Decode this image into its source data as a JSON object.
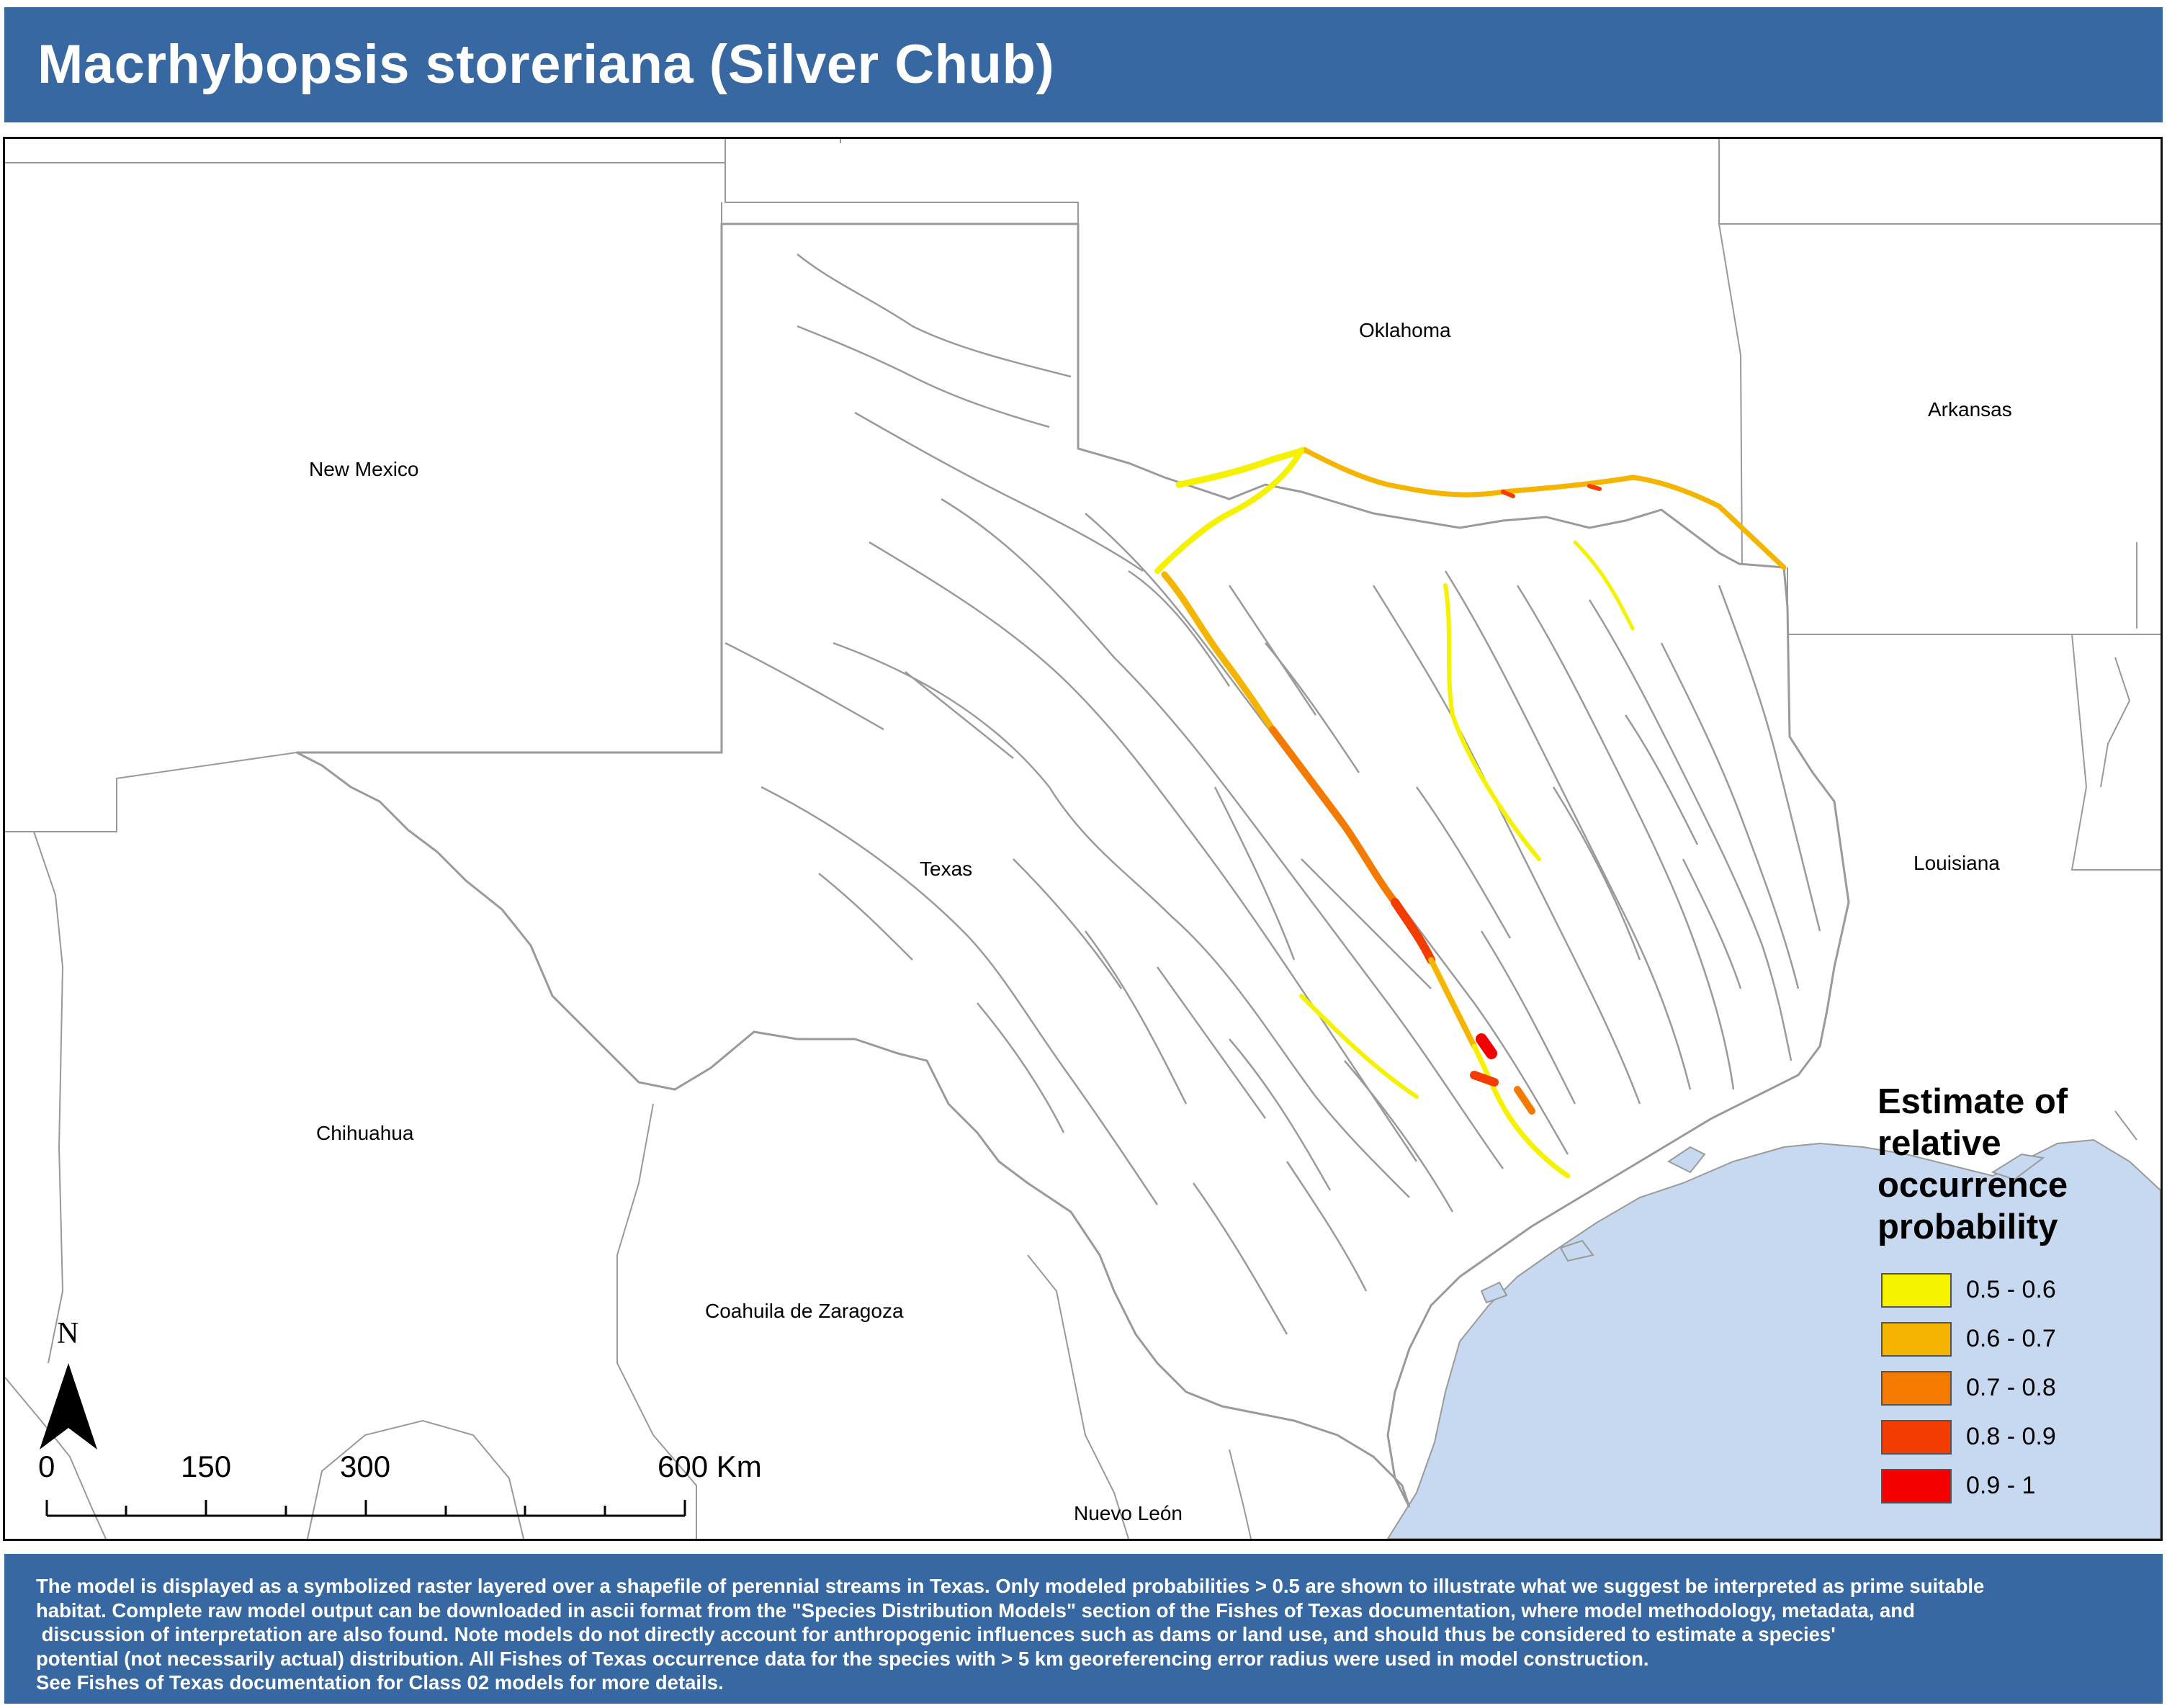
{
  "title": "Macrhybopsis storeriana (Silver Chub)",
  "map": {
    "place_labels": [
      {
        "id": "oklahoma",
        "text": "Oklahoma"
      },
      {
        "id": "arkansas",
        "text": "Arkansas"
      },
      {
        "id": "new-mexico",
        "text": "New Mexico"
      },
      {
        "id": "texas",
        "text": "Texas"
      },
      {
        "id": "louisiana",
        "text": "Louisiana"
      },
      {
        "id": "chihuahua",
        "text": "Chihuahua"
      },
      {
        "id": "coahuila",
        "text": "Coahuila de Zaragoza"
      },
      {
        "id": "nuevo-leon",
        "text": "Nuevo León"
      }
    ],
    "colors": {
      "water": "#c6d9f1",
      "border": "#999999",
      "streams": "#9a9a9a"
    }
  },
  "legend": {
    "title": "Estimate of relative occurrence probability",
    "items": [
      {
        "label": "0.5 - 0.6",
        "color": "#f5f200"
      },
      {
        "label": "0.6 - 0.7",
        "color": "#f4b400"
      },
      {
        "label": "0.7 - 0.8",
        "color": "#f47a00"
      },
      {
        "label": "0.8 - 0.9",
        "color": "#f43c00"
      },
      {
        "label": "0.9 - 1",
        "color": "#f40000"
      }
    ]
  },
  "north_arrow": {
    "label": "N",
    "icon": "north-arrow-icon"
  },
  "scale_bar": {
    "labels": [
      "0",
      "150",
      "300",
      "600 Km"
    ]
  },
  "footer": {
    "lines": [
      "The model is displayed as a symbolized raster layered over a shapefile of perennial streams in Texas. Only modeled probabilities > 0.5 are shown to illustrate what we suggest be interpreted as prime suitable",
      "habitat. Complete raw model output can be downloaded in ascii format from the \"Species Distribution Models\" section of the Fishes of Texas documentation, where model methodology, metadata, and",
      " discussion of interpretation are also found. Note models do not directly account for anthropogenic influences such as dams or land use, and should thus be considered to estimate a species'",
      "potential (not necessarily actual) distribution. All Fishes of Texas occurrence data for the species with > 5 km georeferencing error radius were used in model construction.",
      "See Fishes of Texas documentation for Class 02 models for more details."
    ]
  }
}
